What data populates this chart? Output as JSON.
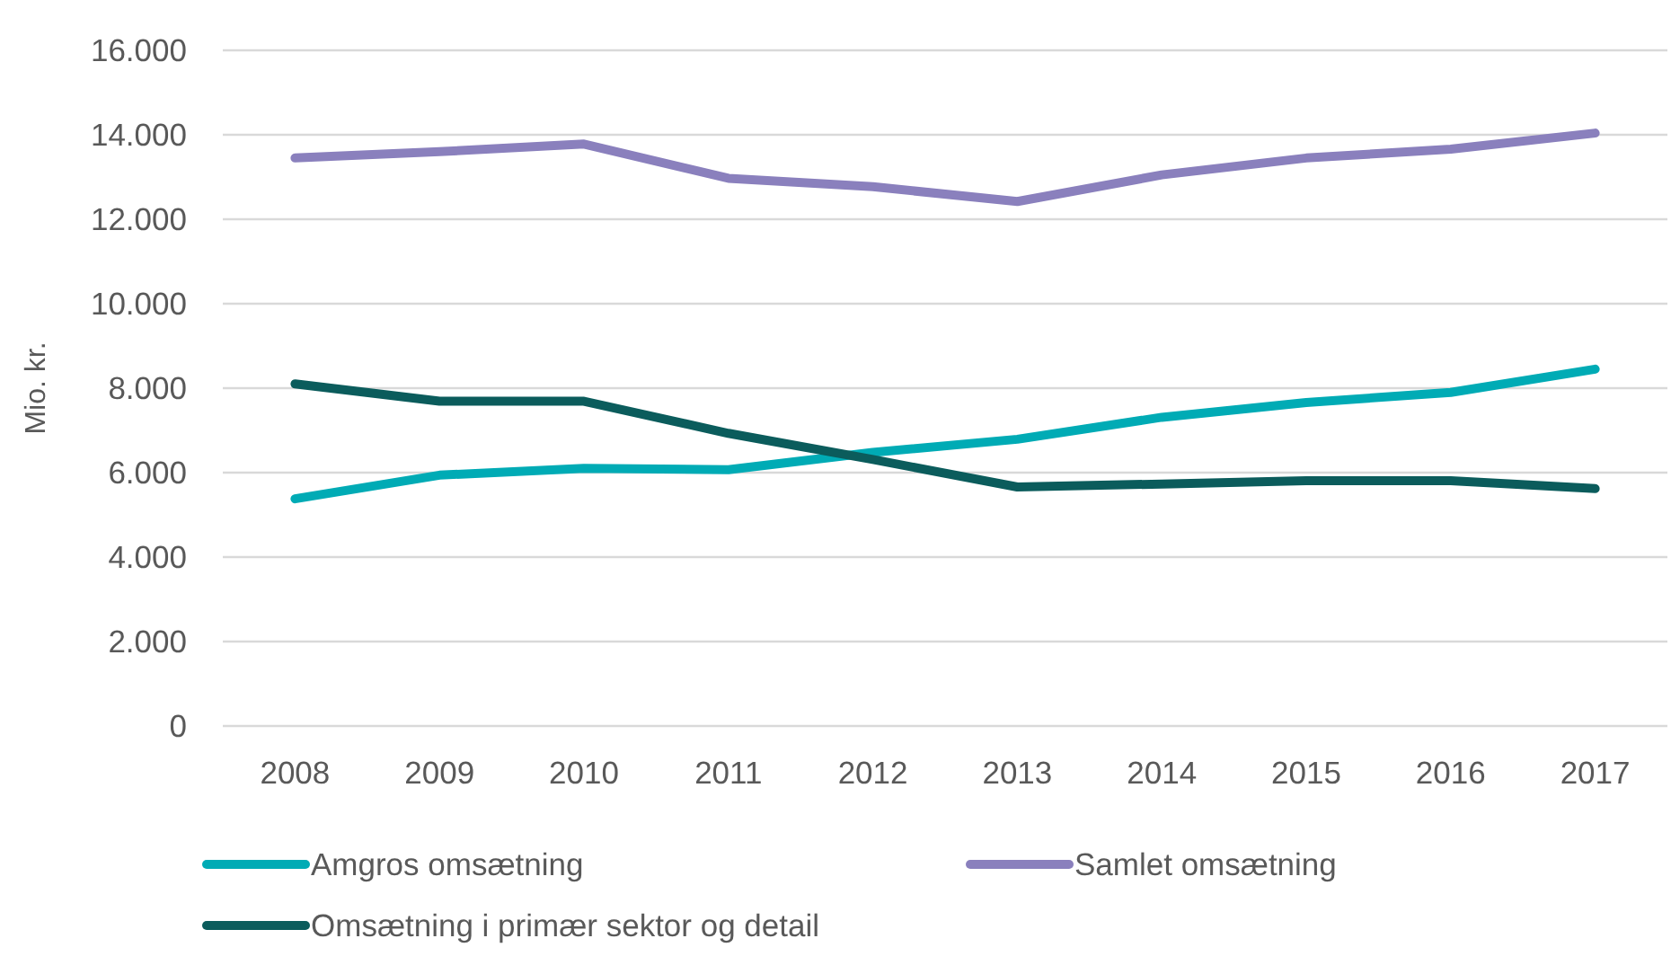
{
  "chart_data": {
    "type": "line",
    "ylabel": "Mio. kr.",
    "categories": [
      "2008",
      "2009",
      "2010",
      "2011",
      "2012",
      "2013",
      "2014",
      "2015",
      "2016",
      "2017"
    ],
    "series": [
      {
        "name": "Amgros omsætning",
        "color": "#00abb5",
        "values": [
          5380,
          5940,
          6100,
          6070,
          6480,
          6790,
          7310,
          7660,
          7900,
          8450
        ]
      },
      {
        "name": "Samlet omsætning",
        "color": "#8a80bd",
        "values": [
          13450,
          13600,
          13780,
          12970,
          12770,
          12420,
          13050,
          13450,
          13660,
          14040
        ]
      },
      {
        "name": "Omsætning i primær sektor og detail",
        "color": "#0b5c5c",
        "values": [
          8100,
          7690,
          7690,
          6930,
          6310,
          5660,
          5730,
          5810,
          5810,
          5620
        ]
      }
    ],
    "ylim": [
      0,
      16000
    ],
    "yticks": [
      {
        "value": 0,
        "label": "0"
      },
      {
        "value": 2000,
        "label": "2.000"
      },
      {
        "value": 4000,
        "label": "4.000"
      },
      {
        "value": 6000,
        "label": "6.000"
      },
      {
        "value": 8000,
        "label": "8.000"
      },
      {
        "value": 10000,
        "label": "10.000"
      },
      {
        "value": 12000,
        "label": "12.000"
      },
      {
        "value": 14000,
        "label": "14.000"
      },
      {
        "value": 16000,
        "label": "16.000"
      }
    ],
    "grid": "y",
    "legend": "bottom",
    "marker": "none",
    "line_style": "solid"
  }
}
